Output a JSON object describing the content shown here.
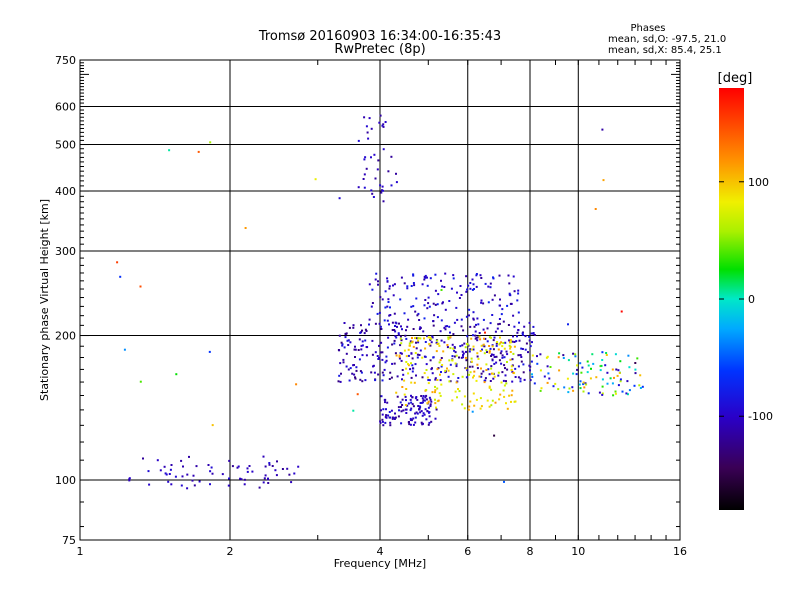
{
  "chart_data": {
    "type": "scatter",
    "title": "Tromsø 20160903 16:34:00-16:35:43",
    "subtitle": "RwPretec (8p)",
    "stats": {
      "heading": "Phases",
      "line1": "mean, sd,O: -97.5, 21.0",
      "line2": "mean, sd,X:  85.4, 25.1"
    },
    "xlabel": "Frequency [MHz]",
    "ylabel": "Stationary phase Virtual Height [km]",
    "xscale": "log",
    "yscale": "log",
    "xlim": [
      1,
      16
    ],
    "ylim": [
      75,
      750
    ],
    "xticks": [
      1,
      2,
      4,
      6,
      8,
      10,
      16
    ],
    "xtick_labels": [
      "1",
      "2",
      "4",
      "6",
      "8",
      "10",
      "16"
    ],
    "xgrid": [
      2,
      4,
      6,
      8,
      10
    ],
    "yticks": [
      75,
      100,
      200,
      300,
      400,
      500,
      600,
      750
    ],
    "ytick_labels": [
      "75",
      "100",
      "200",
      "300",
      "400",
      "500",
      "600",
      "750"
    ],
    "ygrid": [
      100,
      200,
      300,
      400,
      500,
      600
    ],
    "grid": true,
    "colorbar": {
      "label": "[deg]",
      "range": [
        -180,
        180
      ],
      "ticks": [
        100,
        0,
        -100
      ],
      "tick_labels": [
        "100",
        "0",
        "-100"
      ]
    },
    "point_groups": [
      {
        "name": "E-region trace",
        "x_range": [
          1.25,
          2.75
        ],
        "y_range": [
          96,
          112
        ],
        "count": 70,
        "color_range": [
          -120,
          -90
        ]
      },
      {
        "name": "F-trace lower O",
        "x_range": [
          3.3,
          8.2
        ],
        "y_range": [
          160,
          215
        ],
        "count": 380,
        "color_range": [
          -130,
          -80
        ]
      },
      {
        "name": "F-trace upper",
        "x_range": [
          3.8,
          7.6
        ],
        "y_range": [
          215,
          270
        ],
        "count": 150,
        "color_range": [
          -120,
          -70
        ]
      },
      {
        "name": "Spread low-height",
        "x_range": [
          4.0,
          5.2
        ],
        "y_range": [
          130,
          150
        ],
        "count": 120,
        "color_range": [
          -125,
          -85
        ]
      },
      {
        "name": "X-mode scatter",
        "x_range": [
          4.3,
          7.5
        ],
        "y_range": [
          140,
          200
        ],
        "count": 200,
        "color_range": [
          60,
          120
        ]
      },
      {
        "name": "High-frequency trace",
        "x_range": [
          8.0,
          13.5
        ],
        "y_range": [
          150,
          185
        ],
        "count": 110,
        "color_range": [
          -120,
          120
        ]
      },
      {
        "name": "Upper spread",
        "x_range": [
          3.6,
          4.4
        ],
        "y_range": [
          380,
          580
        ],
        "count": 40,
        "color_range": [
          -120,
          -90
        ]
      },
      {
        "name": "Isolated",
        "x_range": [
          1.1,
          15.0
        ],
        "y_range": [
          85,
          540
        ],
        "count": 30,
        "color_range": [
          -180,
          180
        ]
      }
    ]
  }
}
